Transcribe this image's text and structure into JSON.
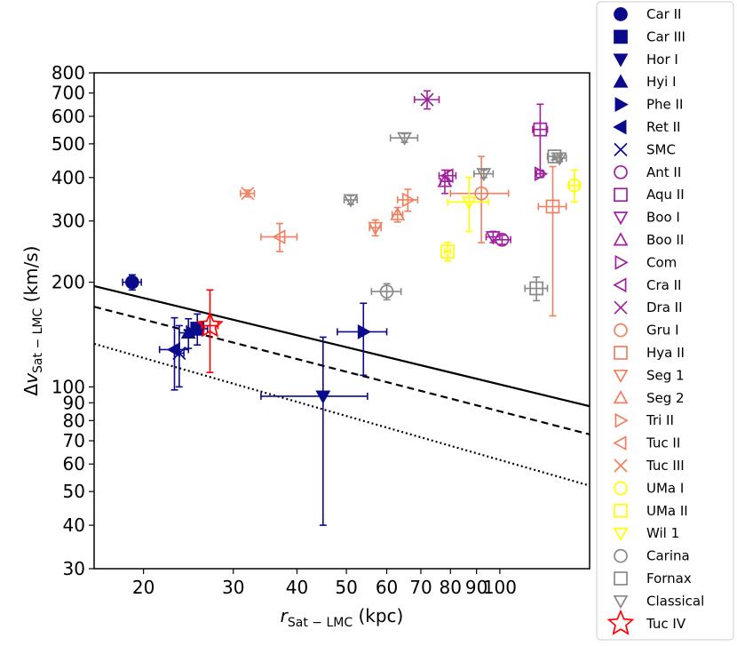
{
  "chart_data": {
    "type": "scatter",
    "title": "",
    "xlabel": "r_Sat−LMC (kpc)",
    "ylabel": "Δv_Sat−LMC (km/s)",
    "x_scale": "log",
    "y_scale": "log",
    "xlim": [
      16,
      150
    ],
    "ylim": [
      30,
      800
    ],
    "x_ticks": [
      {
        "value": 20,
        "label": "20"
      },
      {
        "value": 30,
        "label": "30"
      },
      {
        "value": 40,
        "label": "40"
      },
      {
        "value": 50,
        "label": "50"
      },
      {
        "value": 60,
        "label": "60"
      },
      {
        "value": 70,
        "label": "70"
      },
      {
        "value": 80,
        "label": "80"
      },
      {
        "value": 90,
        "label": "90"
      },
      {
        "value": 100,
        "label": "100"
      }
    ],
    "y_ticks": [
      {
        "value": 30,
        "label": "30"
      },
      {
        "value": 40,
        "label": "40"
      },
      {
        "value": 50,
        "label": "50"
      },
      {
        "value": 60,
        "label": "60"
      },
      {
        "value": 70,
        "label": "70"
      },
      {
        "value": 80,
        "label": "80"
      },
      {
        "value": 90,
        "label": "90"
      },
      {
        "value": 100,
        "label": "100"
      },
      {
        "value": 200,
        "label": "200"
      },
      {
        "value": 300,
        "label": "300"
      },
      {
        "value": 400,
        "label": "400"
      },
      {
        "value": 500,
        "label": "500"
      },
      {
        "value": 600,
        "label": "600"
      },
      {
        "value": 700,
        "label": "700"
      },
      {
        "value": 800,
        "label": "800"
      }
    ],
    "curves": [
      {
        "name": "solid",
        "style": "solid",
        "points": [
          [
            16,
            195
          ],
          [
            150,
            88
          ]
        ]
      },
      {
        "name": "dashed",
        "style": "dashed",
        "points": [
          [
            16,
            170
          ],
          [
            150,
            73
          ]
        ]
      },
      {
        "name": "dotted",
        "style": "dotted",
        "points": [
          [
            16,
            133
          ],
          [
            150,
            52
          ]
        ]
      }
    ],
    "series": [
      {
        "name": "Car II",
        "marker": "circle",
        "filled": true,
        "color": "#0a0a8c",
        "points": [
          {
            "x": 19,
            "y": 200,
            "xerr": [
              0.8,
              0.8
            ],
            "yerr": [
              10,
              10
            ]
          }
        ]
      },
      {
        "name": "Car III",
        "marker": "square",
        "filled": true,
        "color": "#0a0a8c",
        "points": [
          {
            "x": 25.5,
            "y": 147,
            "xerr": [
              1.2,
              1.2
            ],
            "yerr": [
              15,
              15
            ]
          }
        ]
      },
      {
        "name": "Hor I",
        "marker": "triangle-down",
        "filled": true,
        "color": "#0a0a8c",
        "points": [
          {
            "x": 45,
            "y": 94,
            "xerr": [
              11,
              10
            ],
            "yerr": [
              54,
              45
            ]
          }
        ]
      },
      {
        "name": "Hyi I",
        "marker": "triangle-up",
        "filled": true,
        "color": "#0a0a8c",
        "points": [
          {
            "x": 24.5,
            "y": 143,
            "xerr": [
              1,
              1
            ],
            "yerr": [
              14,
              14
            ]
          }
        ]
      },
      {
        "name": "Phe II",
        "marker": "triangle-right",
        "filled": true,
        "color": "#0a0a8c",
        "points": [
          {
            "x": 54,
            "y": 144,
            "xerr": [
              6,
              6
            ],
            "yerr": [
              36,
              30
            ]
          }
        ]
      },
      {
        "name": "Ret II",
        "marker": "triangle-left",
        "filled": true,
        "color": "#0a0a8c",
        "points": [
          {
            "x": 23,
            "y": 128,
            "xerr": [
              1.5,
              1.5
            ],
            "yerr": [
              30,
              30
            ]
          }
        ]
      },
      {
        "name": "SMC",
        "marker": "x",
        "filled": false,
        "color": "#0a0a8c",
        "points": [
          {
            "x": 23.5,
            "y": 125,
            "xerr": [
              0.5,
              0.5
            ],
            "yerr": [
              25,
              25
            ]
          }
        ]
      },
      {
        "name": "Ant II",
        "marker": "circle",
        "filled": false,
        "color": "#a020a0",
        "points": [
          {
            "x": 101,
            "y": 265,
            "xerr": [
              4,
              4
            ],
            "yerr": [
              8,
              8
            ]
          }
        ]
      },
      {
        "name": "Aqu II",
        "marker": "square",
        "filled": false,
        "color": "#a020a0",
        "points": [
          {
            "x": 120,
            "y": 550,
            "xerr": [
              4,
              4
            ],
            "yerr": [
              140,
              100
            ]
          }
        ]
      },
      {
        "name": "Boo I",
        "marker": "triangle-down",
        "filled": false,
        "color": "#a020a0",
        "points": [
          {
            "x": 97,
            "y": 270,
            "xerr": [
              3,
              3
            ],
            "yerr": [
              10,
              10
            ]
          }
        ]
      },
      {
        "name": "Boo II",
        "marker": "triangle-up",
        "filled": false,
        "color": "#a020a0",
        "points": [
          {
            "x": 78,
            "y": 390,
            "xerr": [
              1.5,
              1.5
            ],
            "yerr": [
              30,
              30
            ]
          }
        ]
      },
      {
        "name": "Com",
        "marker": "triangle-right",
        "filled": false,
        "color": "#a020a0",
        "points": [
          {
            "x": 120,
            "y": 410,
            "xerr": [
              2,
              2
            ],
            "yerr": [
              10,
              10
            ]
          }
        ]
      },
      {
        "name": "Cra II",
        "marker": "triangle-left",
        "filled": false,
        "color": "#a020a0",
        "points": [
          {
            "x": 79,
            "y": 405,
            "xerr": [
              3,
              3
            ],
            "yerr": [
              15,
              15
            ]
          }
        ]
      },
      {
        "name": "Dra II",
        "marker": "x",
        "filled": false,
        "color": "#a020a0",
        "points": [
          {
            "x": 72,
            "y": 670,
            "xerr": [
              4,
              4
            ],
            "yerr": [
              40,
              40
            ]
          }
        ]
      },
      {
        "name": "Gru I",
        "marker": "circle",
        "filled": false,
        "color": "#f08060",
        "points": [
          {
            "x": 92,
            "y": 360,
            "xerr": [
              12,
              12
            ],
            "yerr": [
              100,
              100
            ]
          }
        ]
      },
      {
        "name": "Hya II",
        "marker": "square",
        "filled": false,
        "color": "#f08060",
        "points": [
          {
            "x": 127,
            "y": 330,
            "xerr": [
              8,
              8
            ],
            "yerr": [
              170,
              100
            ]
          }
        ]
      },
      {
        "name": "Seg 1",
        "marker": "triangle-down",
        "filled": false,
        "color": "#f08060",
        "points": [
          {
            "x": 57,
            "y": 287,
            "xerr": [
              1.5,
              1.5
            ],
            "yerr": [
              15,
              15
            ]
          }
        ]
      },
      {
        "name": "Seg 2",
        "marker": "triangle-up",
        "filled": false,
        "color": "#f08060",
        "points": [
          {
            "x": 63,
            "y": 313,
            "xerr": [
              1.5,
              1.5
            ],
            "yerr": [
              15,
              15
            ]
          }
        ]
      },
      {
        "name": "Tri II",
        "marker": "triangle-right",
        "filled": false,
        "color": "#f08060",
        "points": [
          {
            "x": 66,
            "y": 345,
            "xerr": [
              3,
              3
            ],
            "yerr": [
              25,
              25
            ]
          }
        ]
      },
      {
        "name": "Tuc II",
        "marker": "triangle-left",
        "filled": false,
        "color": "#f08060",
        "points": [
          {
            "x": 37,
            "y": 270,
            "xerr": [
              3,
              3
            ],
            "yerr": [
              25,
              25
            ]
          }
        ]
      },
      {
        "name": "Tuc III",
        "marker": "x",
        "filled": false,
        "color": "#f08060",
        "points": [
          {
            "x": 32,
            "y": 360,
            "xerr": [
              1,
              1
            ],
            "yerr": [
              8,
              8
            ]
          }
        ]
      },
      {
        "name": "UMa I",
        "marker": "circle",
        "filled": false,
        "color": "#ffff00",
        "points": [
          {
            "x": 140,
            "y": 380,
            "xerr": [
              3,
              3
            ],
            "yerr": [
              40,
              40
            ]
          }
        ]
      },
      {
        "name": "UMa II",
        "marker": "square",
        "filled": false,
        "color": "#ffff00",
        "points": [
          {
            "x": 79,
            "y": 245,
            "xerr": [
              1,
              1
            ],
            "yerr": [
              15,
              15
            ]
          }
        ]
      },
      {
        "name": "Wil 1",
        "marker": "triangle-down",
        "filled": false,
        "color": "#ffff00",
        "points": [
          {
            "x": 87,
            "y": 340,
            "xerr": [
              8,
              8
            ],
            "yerr": [
              60,
              60
            ]
          }
        ]
      },
      {
        "name": "Carina",
        "marker": "circle",
        "filled": false,
        "color": "#888888",
        "points": [
          {
            "x": 60,
            "y": 188,
            "xerr": [
              4,
              4
            ],
            "yerr": [
              10,
              10
            ]
          }
        ]
      },
      {
        "name": "Fornax",
        "marker": "square",
        "filled": false,
        "color": "#888888",
        "points": [
          {
            "x": 118,
            "y": 192,
            "xerr": [
              6,
              6
            ],
            "yerr": [
              15,
              15
            ]
          },
          {
            "x": 128,
            "y": 460,
            "xerr": [
              4,
              4
            ],
            "yerr": [
              10,
              10
            ]
          }
        ]
      },
      {
        "name": "Classical",
        "marker": "triangle-down",
        "filled": false,
        "color": "#888888",
        "points": [
          {
            "x": 51,
            "y": 345,
            "xerr": [
              1.5,
              1.5
            ],
            "yerr": [
              10,
              10
            ]
          },
          {
            "x": 65,
            "y": 520,
            "xerr": [
              4,
              4
            ],
            "yerr": [
              15,
              15
            ]
          },
          {
            "x": 93,
            "y": 410,
            "xerr": [
              4,
              4
            ],
            "yerr": [
              10,
              10
            ]
          },
          {
            "x": 131,
            "y": 455,
            "xerr": [
              4,
              4
            ],
            "yerr": [
              10,
              10
            ]
          }
        ]
      },
      {
        "name": "Tuc IV",
        "marker": "star",
        "filled": false,
        "color": "#ff0000",
        "points": [
          {
            "x": 27,
            "y": 150,
            "xerr": [
              1,
              1
            ],
            "yerr": [
              40,
              40
            ]
          }
        ]
      }
    ],
    "legend": {
      "placement": "outside-right",
      "entries": [
        {
          "label": "Car II",
          "marker": "circle",
          "filled": true,
          "color": "#0a0a8c"
        },
        {
          "label": "Car III",
          "marker": "square",
          "filled": true,
          "color": "#0a0a8c"
        },
        {
          "label": "Hor I",
          "marker": "triangle-down",
          "filled": true,
          "color": "#0a0a8c"
        },
        {
          "label": "Hyi I",
          "marker": "triangle-up",
          "filled": true,
          "color": "#0a0a8c"
        },
        {
          "label": "Phe II",
          "marker": "triangle-right",
          "filled": true,
          "color": "#0a0a8c"
        },
        {
          "label": "Ret II",
          "marker": "triangle-left",
          "filled": true,
          "color": "#0a0a8c"
        },
        {
          "label": "SMC",
          "marker": "x",
          "filled": false,
          "color": "#0a0a8c"
        },
        {
          "label": "Ant II",
          "marker": "circle",
          "filled": false,
          "color": "#a020a0"
        },
        {
          "label": "Aqu II",
          "marker": "square",
          "filled": false,
          "color": "#a020a0"
        },
        {
          "label": "Boo I",
          "marker": "triangle-down",
          "filled": false,
          "color": "#a020a0"
        },
        {
          "label": "Boo II",
          "marker": "triangle-up",
          "filled": false,
          "color": "#a020a0"
        },
        {
          "label": "Com",
          "marker": "triangle-right",
          "filled": false,
          "color": "#a020a0"
        },
        {
          "label": "Cra II",
          "marker": "triangle-left",
          "filled": false,
          "color": "#a020a0"
        },
        {
          "label": "Dra II",
          "marker": "x",
          "filled": false,
          "color": "#a020a0"
        },
        {
          "label": "Gru I",
          "marker": "circle",
          "filled": false,
          "color": "#f08060"
        },
        {
          "label": "Hya II",
          "marker": "square",
          "filled": false,
          "color": "#f08060"
        },
        {
          "label": "Seg 1",
          "marker": "triangle-down",
          "filled": false,
          "color": "#f08060"
        },
        {
          "label": "Seg 2",
          "marker": "triangle-up",
          "filled": false,
          "color": "#f08060"
        },
        {
          "label": "Tri II",
          "marker": "triangle-right",
          "filled": false,
          "color": "#f08060"
        },
        {
          "label": "Tuc II",
          "marker": "triangle-left",
          "filled": false,
          "color": "#f08060"
        },
        {
          "label": "Tuc III",
          "marker": "x",
          "filled": false,
          "color": "#f08060"
        },
        {
          "label": "UMa I",
          "marker": "circle",
          "filled": false,
          "color": "#ffff00"
        },
        {
          "label": "UMa II",
          "marker": "square",
          "filled": false,
          "color": "#ffff00"
        },
        {
          "label": "Wil 1",
          "marker": "triangle-down",
          "filled": false,
          "color": "#ffff00"
        },
        {
          "label": "Carina",
          "marker": "circle",
          "filled": false,
          "color": "#888888"
        },
        {
          "label": "Fornax",
          "marker": "square",
          "filled": false,
          "color": "#888888"
        },
        {
          "label": "Classical",
          "marker": "triangle-down",
          "filled": false,
          "color": "#888888"
        },
        {
          "label": "Tuc IV",
          "marker": "star",
          "filled": false,
          "color": "#ff0000"
        }
      ]
    }
  }
}
